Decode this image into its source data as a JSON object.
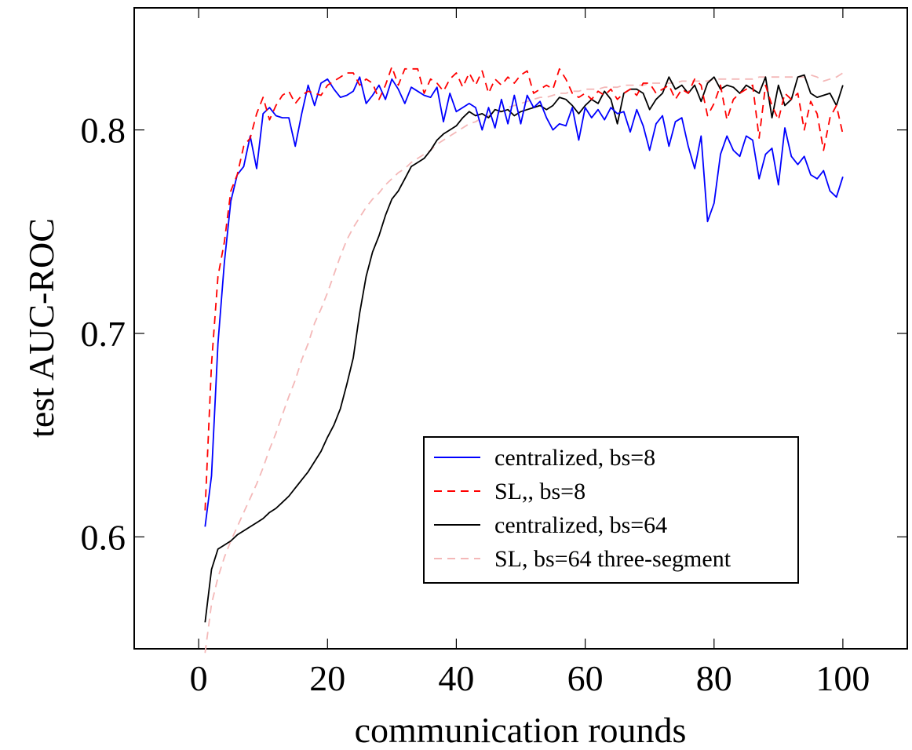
{
  "chart_data": {
    "type": "line",
    "title": "",
    "xlabel": "communication rounds",
    "ylabel": "test AUC-ROC",
    "xlim": [
      -10,
      110
    ],
    "ylim": [
      0.545,
      0.86
    ],
    "xticks": [
      0,
      20,
      40,
      60,
      80,
      100
    ],
    "xtick_labels": [
      "0",
      "20",
      "40",
      "60",
      "80",
      "100"
    ],
    "yticks": [
      0.6,
      0.7,
      0.8
    ],
    "ytick_labels": [
      "0.6",
      "0.7",
      "0.8"
    ],
    "grid": false,
    "legend_position": "lower-right",
    "series": [
      {
        "name": "centralized, bs=8",
        "color": "#0000ff",
        "dash": "solid",
        "x": [
          1,
          2,
          3,
          4,
          5,
          6,
          7,
          8,
          9,
          10,
          11,
          12,
          13,
          14,
          15,
          16,
          17,
          18,
          19,
          20,
          21,
          22,
          23,
          24,
          25,
          26,
          27,
          28,
          29,
          30,
          31,
          32,
          33,
          34,
          35,
          36,
          37,
          38,
          39,
          40,
          41,
          42,
          43,
          44,
          45,
          46,
          47,
          48,
          49,
          50,
          51,
          52,
          53,
          54,
          55,
          56,
          57,
          58,
          59,
          60,
          61,
          62,
          63,
          64,
          65,
          66,
          67,
          68,
          69,
          70,
          71,
          72,
          73,
          74,
          75,
          76,
          77,
          78,
          79,
          80,
          81,
          82,
          83,
          84,
          85,
          86,
          87,
          88,
          89,
          90,
          91,
          92,
          93,
          94,
          95,
          96,
          97,
          98,
          99,
          100
        ],
        "values": [
          0.605,
          0.63,
          0.695,
          0.735,
          0.765,
          0.778,
          0.782,
          0.797,
          0.781,
          0.808,
          0.811,
          0.807,
          0.806,
          0.806,
          0.792,
          0.808,
          0.822,
          0.812,
          0.823,
          0.825,
          0.82,
          0.816,
          0.817,
          0.819,
          0.826,
          0.813,
          0.817,
          0.822,
          0.815,
          0.825,
          0.82,
          0.813,
          0.821,
          0.819,
          0.817,
          0.816,
          0.821,
          0.804,
          0.818,
          0.809,
          0.811,
          0.813,
          0.811,
          0.8,
          0.811,
          0.801,
          0.815,
          0.803,
          0.817,
          0.803,
          0.817,
          0.811,
          0.814,
          0.806,
          0.8,
          0.803,
          0.802,
          0.811,
          0.795,
          0.811,
          0.806,
          0.81,
          0.805,
          0.811,
          0.808,
          0.809,
          0.799,
          0.81,
          0.802,
          0.79,
          0.803,
          0.807,
          0.792,
          0.804,
          0.806,
          0.792,
          0.781,
          0.797,
          0.755,
          0.764,
          0.788,
          0.797,
          0.79,
          0.787,
          0.797,
          0.795,
          0.776,
          0.788,
          0.791,
          0.773,
          0.801,
          0.787,
          0.783,
          0.787,
          0.778,
          0.776,
          0.78,
          0.77,
          0.767,
          0.777
        ]
      },
      {
        "name": "SL,, bs=8",
        "color": "#ff0000",
        "dash": "dashed",
        "x": [
          1,
          2,
          3,
          4,
          5,
          6,
          7,
          8,
          9,
          10,
          11,
          12,
          13,
          14,
          15,
          16,
          17,
          18,
          19,
          20,
          21,
          22,
          23,
          24,
          25,
          26,
          27,
          28,
          29,
          30,
          31,
          32,
          33,
          34,
          35,
          36,
          37,
          38,
          39,
          40,
          41,
          42,
          43,
          44,
          45,
          46,
          47,
          48,
          49,
          50,
          51,
          52,
          53,
          54,
          55,
          56,
          57,
          58,
          59,
          60,
          61,
          62,
          63,
          64,
          65,
          66,
          67,
          68,
          69,
          70,
          71,
          72,
          73,
          74,
          75,
          76,
          77,
          78,
          79,
          80,
          81,
          82,
          83,
          84,
          85,
          86,
          87,
          88,
          89,
          90,
          91,
          92,
          93,
          94,
          95,
          96,
          97,
          98,
          99,
          100
        ],
        "values": [
          0.613,
          0.685,
          0.728,
          0.745,
          0.77,
          0.778,
          0.792,
          0.796,
          0.808,
          0.816,
          0.805,
          0.812,
          0.817,
          0.819,
          0.813,
          0.817,
          0.819,
          0.818,
          0.817,
          0.822,
          0.824,
          0.826,
          0.828,
          0.828,
          0.822,
          0.825,
          0.823,
          0.815,
          0.822,
          0.831,
          0.822,
          0.83,
          0.83,
          0.83,
          0.818,
          0.825,
          0.823,
          0.819,
          0.825,
          0.828,
          0.821,
          0.828,
          0.822,
          0.829,
          0.818,
          0.825,
          0.822,
          0.826,
          0.823,
          0.827,
          0.829,
          0.818,
          0.82,
          0.822,
          0.82,
          0.83,
          0.825,
          0.818,
          0.816,
          0.818,
          0.815,
          0.819,
          0.817,
          0.82,
          0.815,
          0.818,
          0.82,
          0.817,
          0.823,
          0.823,
          0.818,
          0.82,
          0.822,
          0.815,
          0.82,
          0.818,
          0.825,
          0.822,
          0.807,
          0.813,
          0.822,
          0.805,
          0.815,
          0.818,
          0.82,
          0.822,
          0.796,
          0.822,
          0.812,
          0.805,
          0.818,
          0.815,
          0.818,
          0.8,
          0.814,
          0.808,
          0.79,
          0.806,
          0.812,
          0.798
        ]
      },
      {
        "name": "centralized, bs=64",
        "color": "#000000",
        "dash": "solid",
        "x": [
          1,
          2,
          3,
          4,
          5,
          6,
          7,
          8,
          9,
          10,
          11,
          12,
          13,
          14,
          15,
          16,
          17,
          18,
          19,
          20,
          21,
          22,
          23,
          24,
          25,
          26,
          27,
          28,
          29,
          30,
          31,
          32,
          33,
          34,
          35,
          36,
          37,
          38,
          39,
          40,
          41,
          42,
          43,
          44,
          45,
          46,
          47,
          48,
          49,
          50,
          51,
          52,
          53,
          54,
          55,
          56,
          57,
          58,
          59,
          60,
          61,
          62,
          63,
          64,
          65,
          66,
          67,
          68,
          69,
          70,
          71,
          72,
          73,
          74,
          75,
          76,
          77,
          78,
          79,
          80,
          81,
          82,
          83,
          84,
          85,
          86,
          87,
          88,
          89,
          90,
          91,
          92,
          93,
          94,
          95,
          96,
          97,
          98,
          99,
          100
        ],
        "values": [
          0.558,
          0.584,
          0.594,
          0.596,
          0.598,
          0.601,
          0.603,
          0.605,
          0.607,
          0.609,
          0.612,
          0.614,
          0.617,
          0.62,
          0.624,
          0.628,
          0.632,
          0.637,
          0.642,
          0.649,
          0.655,
          0.663,
          0.675,
          0.688,
          0.71,
          0.728,
          0.74,
          0.748,
          0.758,
          0.766,
          0.77,
          0.776,
          0.782,
          0.784,
          0.786,
          0.79,
          0.795,
          0.798,
          0.8,
          0.802,
          0.806,
          0.809,
          0.807,
          0.808,
          0.806,
          0.81,
          0.809,
          0.81,
          0.807,
          0.809,
          0.81,
          0.811,
          0.812,
          0.81,
          0.812,
          0.816,
          0.815,
          0.812,
          0.808,
          0.812,
          0.815,
          0.813,
          0.819,
          0.815,
          0.803,
          0.818,
          0.82,
          0.82,
          0.818,
          0.81,
          0.815,
          0.818,
          0.826,
          0.82,
          0.822,
          0.818,
          0.822,
          0.814,
          0.823,
          0.826,
          0.82,
          0.822,
          0.821,
          0.818,
          0.822,
          0.82,
          0.818,
          0.826,
          0.806,
          0.822,
          0.812,
          0.815,
          0.826,
          0.827,
          0.818,
          0.816,
          0.817,
          0.818,
          0.812,
          0.822
        ]
      },
      {
        "name": "SL, bs=64 three-segment",
        "color": "#f4b8b8",
        "dash": "dashed",
        "x": [
          1,
          2,
          3,
          4,
          5,
          6,
          7,
          8,
          9,
          10,
          11,
          12,
          13,
          14,
          15,
          16,
          17,
          18,
          19,
          20,
          21,
          22,
          23,
          24,
          25,
          26,
          27,
          28,
          29,
          30,
          31,
          32,
          33,
          34,
          35,
          36,
          37,
          38,
          39,
          40,
          41,
          42,
          43,
          44,
          45,
          46,
          47,
          48,
          49,
          50,
          51,
          52,
          53,
          54,
          55,
          56,
          57,
          58,
          59,
          60,
          61,
          62,
          63,
          64,
          65,
          66,
          67,
          68,
          69,
          70,
          71,
          72,
          73,
          74,
          75,
          76,
          77,
          78,
          79,
          80,
          81,
          82,
          83,
          84,
          85,
          86,
          87,
          88,
          89,
          90,
          91,
          92,
          93,
          94,
          95,
          96,
          97,
          98,
          99,
          100
        ],
        "values": [
          0.543,
          0.567,
          0.58,
          0.59,
          0.598,
          0.605,
          0.612,
          0.619,
          0.626,
          0.634,
          0.643,
          0.651,
          0.66,
          0.669,
          0.677,
          0.687,
          0.695,
          0.705,
          0.712,
          0.72,
          0.729,
          0.738,
          0.746,
          0.752,
          0.757,
          0.762,
          0.766,
          0.769,
          0.773,
          0.776,
          0.779,
          0.781,
          0.784,
          0.786,
          0.788,
          0.79,
          0.793,
          0.795,
          0.797,
          0.799,
          0.801,
          0.803,
          0.804,
          0.806,
          0.807,
          0.808,
          0.809,
          0.811,
          0.812,
          0.813,
          0.814,
          0.815,
          0.816,
          0.816,
          0.817,
          0.818,
          0.818,
          0.819,
          0.819,
          0.82,
          0.82,
          0.82,
          0.821,
          0.821,
          0.821,
          0.822,
          0.822,
          0.822,
          0.822,
          0.823,
          0.823,
          0.823,
          0.823,
          0.823,
          0.824,
          0.824,
          0.824,
          0.824,
          0.824,
          0.825,
          0.825,
          0.825,
          0.825,
          0.825,
          0.825,
          0.825,
          0.826,
          0.826,
          0.826,
          0.826,
          0.826,
          0.826,
          0.826,
          0.826,
          0.827,
          0.826,
          0.824,
          0.825,
          0.826,
          0.828
        ]
      }
    ]
  }
}
